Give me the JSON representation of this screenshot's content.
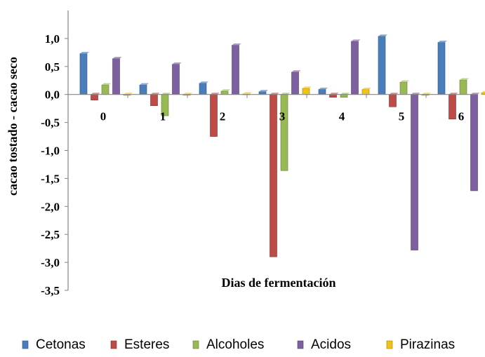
{
  "chart_data": {
    "type": "bar",
    "xlabel": "Dias de fermentación",
    "ylabel": "cacao tostado - cacao seco",
    "categories": [
      "0",
      "1",
      "2",
      "3",
      "4",
      "5",
      "6"
    ],
    "ylim": [
      -3.5,
      1.5
    ],
    "yticks": [
      1.0,
      0.5,
      0.0,
      -0.5,
      -1.0,
      -1.5,
      -2.0,
      -2.5,
      -3.0,
      -3.5
    ],
    "ytick_labels": [
      "1,0",
      "0,5",
      "0,0",
      "-0,5",
      "-1,0",
      "-1,5",
      "-2,0",
      "-2,5",
      "-3,0",
      "-3,5"
    ],
    "grid": false,
    "legend_position": "bottom",
    "series": [
      {
        "name": "Cetonas",
        "color": "#4a7ebb",
        "values": [
          0.73,
          0.17,
          0.2,
          0.05,
          0.09,
          1.04,
          0.93
        ]
      },
      {
        "name": "Esteres",
        "color": "#be4b48",
        "values": [
          -0.1,
          -0.2,
          -0.75,
          -2.9,
          -0.05,
          -0.22,
          -0.44
        ]
      },
      {
        "name": "Alcoholes",
        "color": "#98b954",
        "values": [
          0.17,
          -0.38,
          0.06,
          -1.36,
          -0.05,
          0.22,
          0.26
        ]
      },
      {
        "name": "Acidos",
        "color": "#7d60a0",
        "values": [
          0.64,
          0.54,
          0.88,
          0.4,
          0.95,
          -2.78,
          -1.72
        ]
      },
      {
        "name": "Pirazinas",
        "color": "#f2c314",
        "values": [
          0.0,
          0.0,
          0.01,
          0.11,
          0.09,
          0.0,
          0.03
        ]
      }
    ]
  }
}
